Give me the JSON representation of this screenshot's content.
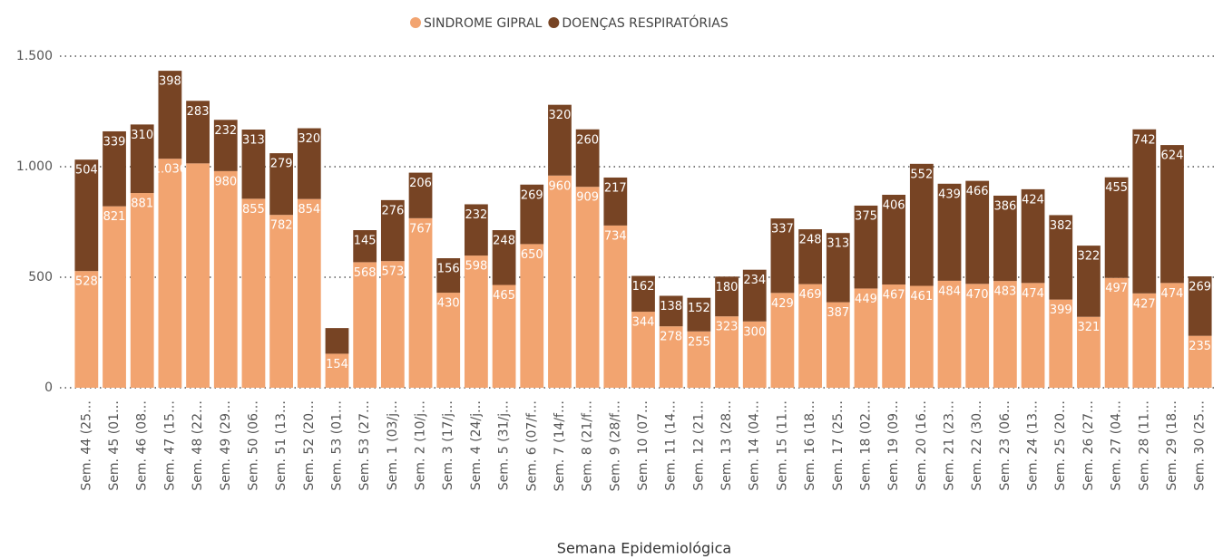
{
  "chart_data": {
    "type": "stacked-bar",
    "x_label": "Semana Epidemiológica",
    "categories": [
      "Sem. 44 (25…",
      "Sem. 45 (01…",
      "Sem. 46 (08…",
      "Sem. 47 (15…",
      "Sem. 48 (22…",
      "Sem. 49 (29…",
      "Sem. 50 (06…",
      "Sem. 51 (13…",
      "Sem. 52 (20…",
      "Sem. 53 (01…",
      "Sem. 53 (27…",
      "Sem. 1 (03/j…",
      "Sem. 2 (10/j…",
      "Sem. 3 (17/j…",
      "Sem. 4 (24/j…",
      "Sem. 5 (31/j…",
      "Sem. 6 (07/f…",
      "Sem. 7 (14/f…",
      "Sem. 8 (21/f…",
      "Sem. 9 (28/f…",
      "Sem. 10 (07…",
      "Sem. 11 (14…",
      "Sem. 12 (21…",
      "Sem. 13 (28…",
      "Sem. 14 (04…",
      "Sem. 15 (11…",
      "Sem. 16 (18…",
      "Sem. 17 (25…",
      "Sem. 18 (02…",
      "Sem. 19 (09…",
      "Sem. 20 (16…",
      "Sem. 21 (23…",
      "Sem. 22 (30…",
      "Sem. 23 (06…",
      "Sem. 24 (13…",
      "Sem. 25 (20…",
      "Sem. 26 (27…",
      "Sem. 27 (04…",
      "Sem. 28 (11…",
      "Sem. 29 (18…",
      "Sem. 30 (25…"
    ],
    "series": [
      {
        "name": "SINDROME GIPRAL",
        "color": "#f2a470",
        "values": [
          528,
          821,
          881,
          1036,
          1015,
          980,
          855,
          782,
          854,
          154,
          568,
          573,
          767,
          430,
          598,
          465,
          650,
          960,
          909,
          734,
          344,
          278,
          255,
          323,
          300,
          429,
          469,
          387,
          449,
          467,
          461,
          484,
          470,
          483,
          474,
          399,
          321,
          497,
          427,
          474,
          235
        ],
        "value_labels": [
          "528",
          "821",
          "881",
          "1.036",
          null,
          "980",
          "855",
          "782",
          "854",
          "154",
          "568",
          "573",
          "767",
          "430",
          "598",
          "465",
          "650",
          "960",
          "909",
          "734",
          "344",
          "278",
          "255",
          "323",
          "300",
          "429",
          "469",
          "387",
          "449",
          "467",
          "461",
          "484",
          "470",
          "483",
          "474",
          "399",
          "321",
          "497",
          "427",
          "474",
          "235"
        ]
      },
      {
        "name": "DOENÇAS RESPIRATÓRIAS",
        "color": "#774424",
        "values": [
          504,
          339,
          310,
          398,
          283,
          232,
          313,
          279,
          320,
          116,
          145,
          276,
          206,
          156,
          232,
          248,
          269,
          320,
          260,
          217,
          162,
          138,
          152,
          180,
          234,
          337,
          248,
          313,
          375,
          406,
          552,
          439,
          466,
          386,
          424,
          382,
          322,
          455,
          742,
          624,
          269
        ],
        "value_labels": [
          "504",
          "339",
          "310",
          "398",
          "283",
          "232",
          "313",
          "279",
          "320",
          null,
          "145",
          "276",
          "206",
          "156",
          "232",
          "248",
          "269",
          "320",
          "260",
          "217",
          "162",
          "138",
          "152",
          "180",
          "234",
          "337",
          "248",
          "313",
          "375",
          "406",
          "552",
          "439",
          "466",
          "386",
          "424",
          "382",
          "322",
          "455",
          "742",
          "624",
          "269"
        ]
      }
    ],
    "ylim": [
      0,
      1500
    ],
    "yticks": [
      0,
      500,
      {
        "value": 1000,
        "label": "1.000"
      },
      {
        "value": 1500,
        "label": "1.500"
      }
    ],
    "grid": true,
    "legend": "top"
  }
}
